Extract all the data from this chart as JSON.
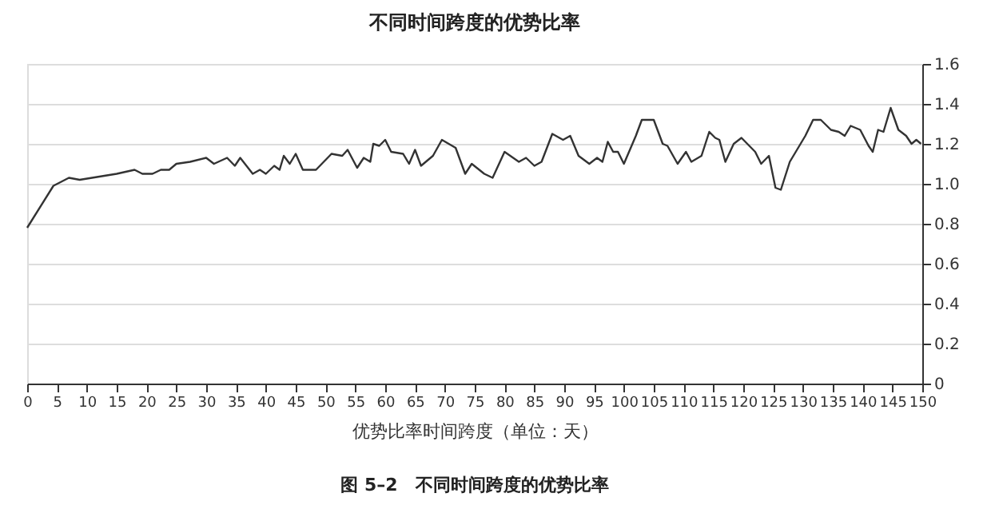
{
  "chart_data": {
    "type": "line",
    "title": "不同时间跨度的优势比率",
    "xlabel": "优势比率时间跨度（单位：天）",
    "annotations": [
      "图 5–2　不同时间跨度的优势比率"
    ],
    "x": [
      0,
      4.4,
      7,
      8.8,
      15,
      18,
      19.3,
      21,
      22.4,
      23.8,
      25,
      27.3,
      30,
      31.3,
      33.5,
      34.8,
      35.7,
      37.8,
      39,
      40,
      41.4,
      42.3,
      43,
      44,
      45,
      46.2,
      48.4,
      51,
      52.8,
      53.7,
      55.3,
      56.4,
      57.5,
      58,
      59,
      60,
      61,
      63,
      64,
      65,
      66,
      68,
      69.5,
      71.8,
      73.4,
      74.5,
      76.6,
      78,
      80,
      82.4,
      83.6,
      85,
      86.2,
      88,
      89.8,
      91,
      92.4,
      94.2,
      95.5,
      96.4,
      97.3,
      98.2,
      99,
      100,
      102,
      103,
      105,
      106.5,
      107.3,
      109,
      110.4,
      111.3,
      113,
      114.3,
      115.3,
      116,
      117,
      118.4,
      119.7,
      122,
      123,
      124.3,
      125.4,
      126.3,
      127.8,
      129,
      130.4,
      131.7,
      133,
      134.7,
      136,
      137,
      138,
      139.6,
      141,
      141.7,
      142.6,
      143.5,
      144.7,
      146,
      147.3,
      148.2,
      149,
      149.8
    ],
    "series": [
      {
        "color": "#333333",
        "values": [
          0.78,
          0.99,
          1.03,
          1.02,
          1.05,
          1.07,
          1.05,
          1.05,
          1.07,
          1.07,
          1.1,
          1.11,
          1.13,
          1.1,
          1.13,
          1.09,
          1.13,
          1.05,
          1.07,
          1.05,
          1.09,
          1.07,
          1.14,
          1.1,
          1.15,
          1.07,
          1.07,
          1.15,
          1.14,
          1.17,
          1.08,
          1.13,
          1.11,
          1.2,
          1.19,
          1.22,
          1.16,
          1.15,
          1.1,
          1.17,
          1.09,
          1.14,
          1.22,
          1.18,
          1.05,
          1.1,
          1.05,
          1.03,
          1.16,
          1.11,
          1.13,
          1.09,
          1.11,
          1.25,
          1.22,
          1.24,
          1.14,
          1.1,
          1.13,
          1.11,
          1.21,
          1.16,
          1.16,
          1.1,
          1.24,
          1.32,
          1.32,
          1.2,
          1.19,
          1.1,
          1.16,
          1.11,
          1.14,
          1.26,
          1.23,
          1.22,
          1.11,
          1.2,
          1.23,
          1.16,
          1.1,
          1.14,
          0.98,
          0.97,
          1.11,
          1.17,
          1.24,
          1.32,
          1.32,
          1.27,
          1.26,
          1.24,
          1.29,
          1.27,
          1.19,
          1.16,
          1.27,
          1.26,
          1.38,
          1.27,
          1.24,
          1.2,
          1.22,
          1.2
        ]
      }
    ],
    "xlim": [
      0,
      150
    ],
    "xticks": [
      0,
      5,
      10,
      15,
      20,
      25,
      30,
      35,
      40,
      45,
      50,
      55,
      60,
      65,
      70,
      75,
      80,
      85,
      90,
      95,
      100,
      105,
      110,
      115,
      120,
      125,
      130,
      135,
      140,
      145,
      150
    ],
    "ylim": [
      0,
      1.6
    ],
    "yticks": [
      0,
      0.2,
      0.4,
      0.6,
      0.8,
      {
        "value": 1.0,
        "label": "1.0"
      },
      1.2,
      1.4,
      1.6
    ],
    "grid": "y",
    "marker": "none",
    "line_style": "solid"
  }
}
